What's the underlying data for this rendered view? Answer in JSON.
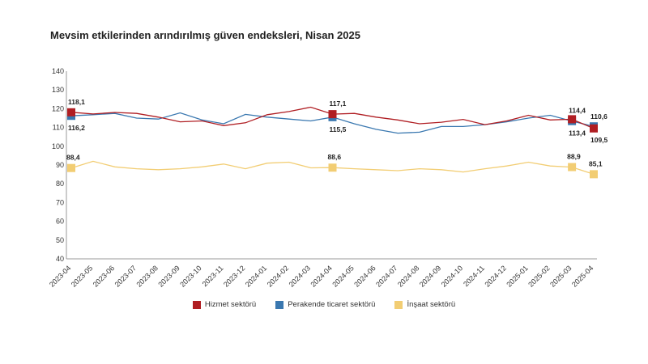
{
  "chart_data": {
    "type": "line",
    "title": "Mevsim etkilerinden arındırılmış güven endeksleri, Nisan 2025",
    "xlabel": "",
    "ylabel": "",
    "ylim": [
      40,
      140
    ],
    "yticks": [
      40,
      50,
      60,
      70,
      80,
      90,
      100,
      110,
      120,
      130,
      140
    ],
    "categories": [
      "2023-04",
      "2023-05",
      "2023-06",
      "2023-07",
      "2023-08",
      "2023-09",
      "2023-10",
      "2023-11",
      "2023-12",
      "2024-01",
      "2024-02",
      "2024-03",
      "2024-04",
      "2024-05",
      "2024-06",
      "2024-07",
      "2024-08",
      "2024-09",
      "2024-10",
      "2024-11",
      "2024-12",
      "2025-01",
      "2025-02",
      "2025-03",
      "2025-04"
    ],
    "series": [
      {
        "name": "Hizmet sektörü",
        "color": "#b01e23",
        "values": [
          118.1,
          117.2,
          118.0,
          117.5,
          115.5,
          113.0,
          113.5,
          111.0,
          112.5,
          116.8,
          118.5,
          120.8,
          117.1,
          117.5,
          115.5,
          114.0,
          112.0,
          112.8,
          114.3,
          111.5,
          113.5,
          116.5,
          114.0,
          114.4,
          109.5
        ],
        "labels": [
          {
            "index": 0,
            "text": "118,1"
          },
          {
            "index": 12,
            "text": "117,1"
          },
          {
            "index": 23,
            "text": "114,4"
          },
          {
            "index": 24,
            "text": "109,5"
          }
        ]
      },
      {
        "name": "Perakende ticaret sektörü",
        "color": "#3a78b0",
        "values": [
          116.2,
          116.8,
          117.5,
          115.0,
          114.5,
          117.8,
          114.0,
          112.0,
          117.0,
          115.5,
          114.5,
          113.5,
          115.5,
          112.0,
          109.0,
          107.0,
          107.5,
          110.5,
          110.5,
          111.5,
          113.0,
          115.0,
          116.5,
          113.4,
          110.6
        ],
        "labels": [
          {
            "index": 0,
            "text": "116,2"
          },
          {
            "index": 12,
            "text": "115,5"
          },
          {
            "index": 23,
            "text": "113,4"
          },
          {
            "index": 24,
            "text": "110,6"
          }
        ]
      },
      {
        "name": "İnşaat sektörü",
        "color": "#f2cd73",
        "values": [
          88.4,
          92.0,
          89.0,
          88.0,
          87.5,
          88.0,
          89.0,
          90.5,
          88.0,
          91.0,
          91.5,
          88.5,
          88.6,
          88.0,
          87.5,
          87.0,
          88.0,
          87.5,
          86.3,
          88.0,
          89.5,
          91.5,
          89.5,
          88.9,
          85.1
        ],
        "labels": [
          {
            "index": 0,
            "text": "88,4"
          },
          {
            "index": 12,
            "text": "88,6"
          },
          {
            "index": 23,
            "text": "88,9"
          },
          {
            "index": 24,
            "text": "85,1"
          }
        ]
      }
    ],
    "markers_at": [
      0,
      12,
      23,
      24
    ],
    "legend_position": "bottom-center",
    "grid": false
  }
}
